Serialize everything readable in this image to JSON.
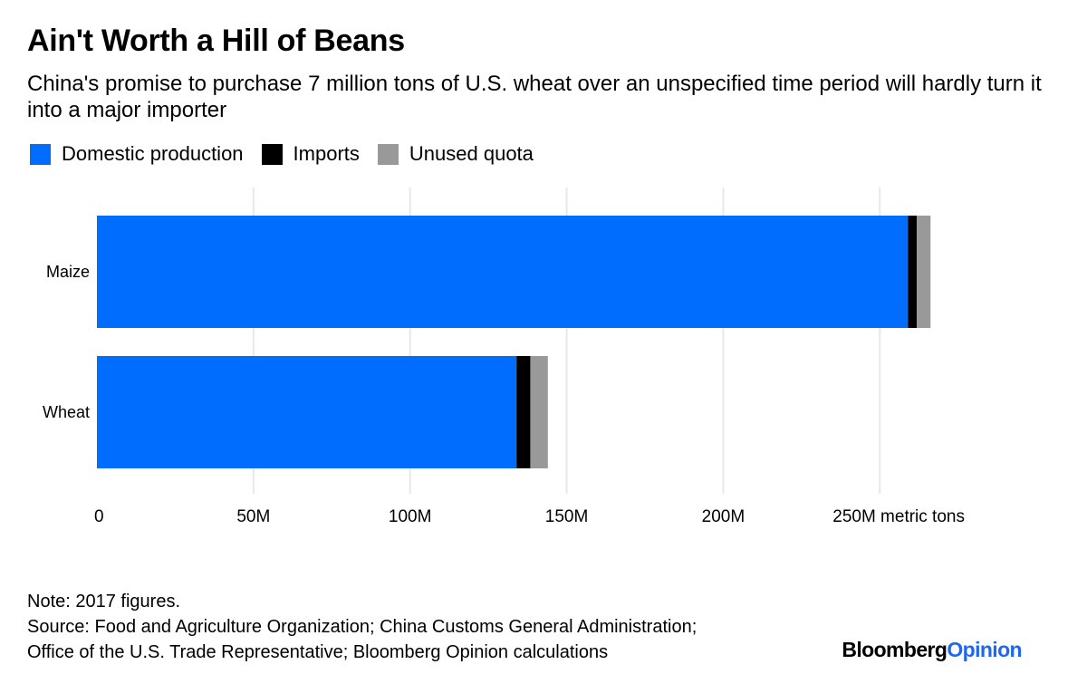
{
  "title": "Ain't Worth a Hill of Beans",
  "subtitle": "China's promise to purchase 7 million tons of U.S. wheat over an unspecified time period will hardly turn it into a major importer",
  "colors": {
    "domestic": "#006dff",
    "imports": "#000000",
    "unused": "#999999",
    "grid": "#e8e8e8"
  },
  "legend": [
    {
      "label": "Domestic production",
      "color": "#006dff"
    },
    {
      "label": "Imports",
      "color": "#000000"
    },
    {
      "label": "Unused quota",
      "color": "#999999"
    }
  ],
  "chart_data": {
    "type": "bar",
    "orientation": "horizontal",
    "stacked": true,
    "categories": [
      "Maize",
      "Wheat"
    ],
    "series": [
      {
        "name": "Domestic production",
        "values": [
          259,
          134
        ]
      },
      {
        "name": "Imports",
        "values": [
          2.8,
          4.4
        ]
      },
      {
        "name": "Unused quota",
        "values": [
          4.4,
          5.6
        ]
      }
    ],
    "xlim": [
      0,
      265
    ],
    "xticks": [
      {
        "value": 0,
        "label": "0"
      },
      {
        "value": 50,
        "label": "50M"
      },
      {
        "value": 100,
        "label": "100M"
      },
      {
        "value": 150,
        "label": "150M"
      },
      {
        "value": 200,
        "label": "200M"
      },
      {
        "value": 250,
        "label": "250M metric tons"
      }
    ],
    "grid": true,
    "legend_position": "top-left"
  },
  "notes": {
    "note": "Note: 2017 figures.",
    "source_line1": "Source: Food and Agriculture Organization; China Customs General Administration;",
    "source_line2": "Office of the U.S. Trade Representative; Bloomberg Opinion calculations"
  },
  "brand": {
    "part1": "Bloomberg",
    "part2": "Opinion"
  }
}
